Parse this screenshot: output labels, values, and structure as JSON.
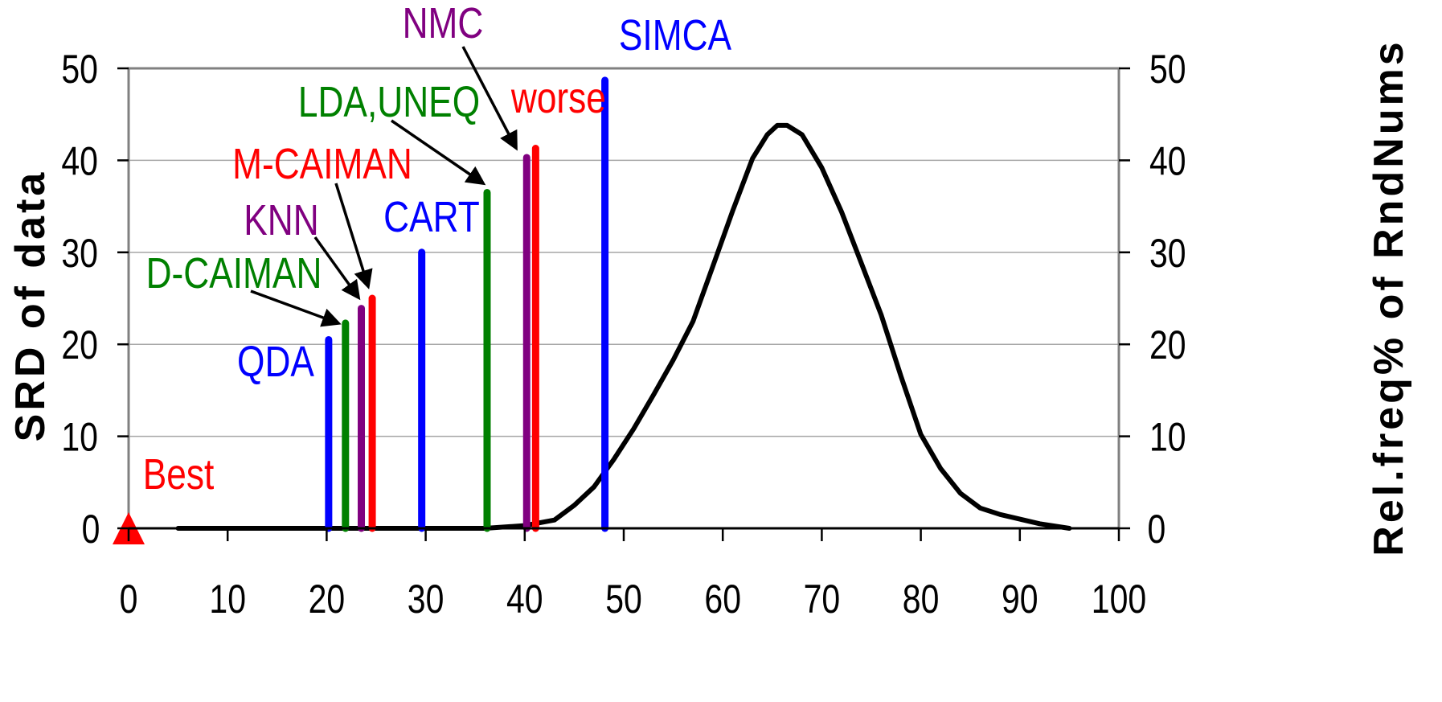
{
  "chart_data": {
    "type": "line",
    "title": "",
    "xlabel": "",
    "ylabel": "SRD of data",
    "y2label": "Rel.freq% of RndNums",
    "xlim": [
      0,
      100
    ],
    "ylim": [
      0,
      50
    ],
    "y2lim": [
      0,
      50
    ],
    "grid": true,
    "x_ticks": [
      "0",
      "10",
      "20",
      "30",
      "40",
      "50",
      "60",
      "70",
      "80",
      "90",
      "100"
    ],
    "y_ticks": [
      "0",
      "10",
      "20",
      "30",
      "40",
      "50"
    ],
    "y2_ticks": [
      "0",
      "10",
      "20",
      "30",
      "40",
      "50"
    ],
    "bars": [
      {
        "label": "QDA",
        "x": 20.2,
        "value": 20.5,
        "color": "#0000ff"
      },
      {
        "label": "D-CAIMAN",
        "x": 21.9,
        "value": 22.3,
        "color": "#008000"
      },
      {
        "label": "KNN",
        "x": 23.5,
        "value": 23.9,
        "color": "#800080"
      },
      {
        "label": "M-CAIMAN",
        "x": 24.6,
        "value": 25.0,
        "color": "#ff0000"
      },
      {
        "label": "CART",
        "x": 29.6,
        "value": 30.0,
        "color": "#0000ff"
      },
      {
        "label": "LDA,UNEQ",
        "x": 36.2,
        "value": 36.5,
        "color": "#008000"
      },
      {
        "label": "NMC",
        "x": 40.2,
        "value": 40.3,
        "color": "#800080"
      },
      {
        "label": "worse",
        "x": 41.1,
        "value": 41.3,
        "color": "#ff0000"
      },
      {
        "label": "SIMCA",
        "x": 48.1,
        "value": 48.7,
        "color": "#0000ff"
      }
    ],
    "marker": {
      "label": "Best",
      "x": 0,
      "value": 0,
      "shape": "triangle",
      "color": "#ff0000"
    },
    "series": [
      {
        "axis": "right",
        "color": "#000000",
        "x": [
          5,
          36,
          40,
          43,
          45,
          47,
          49,
          51,
          53,
          55,
          57,
          59,
          61,
          63,
          64.5,
          65.5,
          66.5,
          68,
          70,
          72,
          74,
          76,
          78,
          80,
          82,
          84,
          86,
          88,
          90,
          92,
          95
        ],
        "values": [
          0,
          0,
          0.3,
          0.9,
          2.5,
          4.5,
          7.5,
          10.8,
          14.5,
          18.3,
          22.5,
          28.5,
          34.5,
          40.2,
          42.8,
          43.8,
          43.8,
          42.8,
          39.2,
          34.4,
          28.8,
          23.2,
          16.5,
          10.2,
          6.5,
          3.8,
          2.2,
          1.5,
          1.0,
          0.5,
          0
        ]
      }
    ]
  }
}
